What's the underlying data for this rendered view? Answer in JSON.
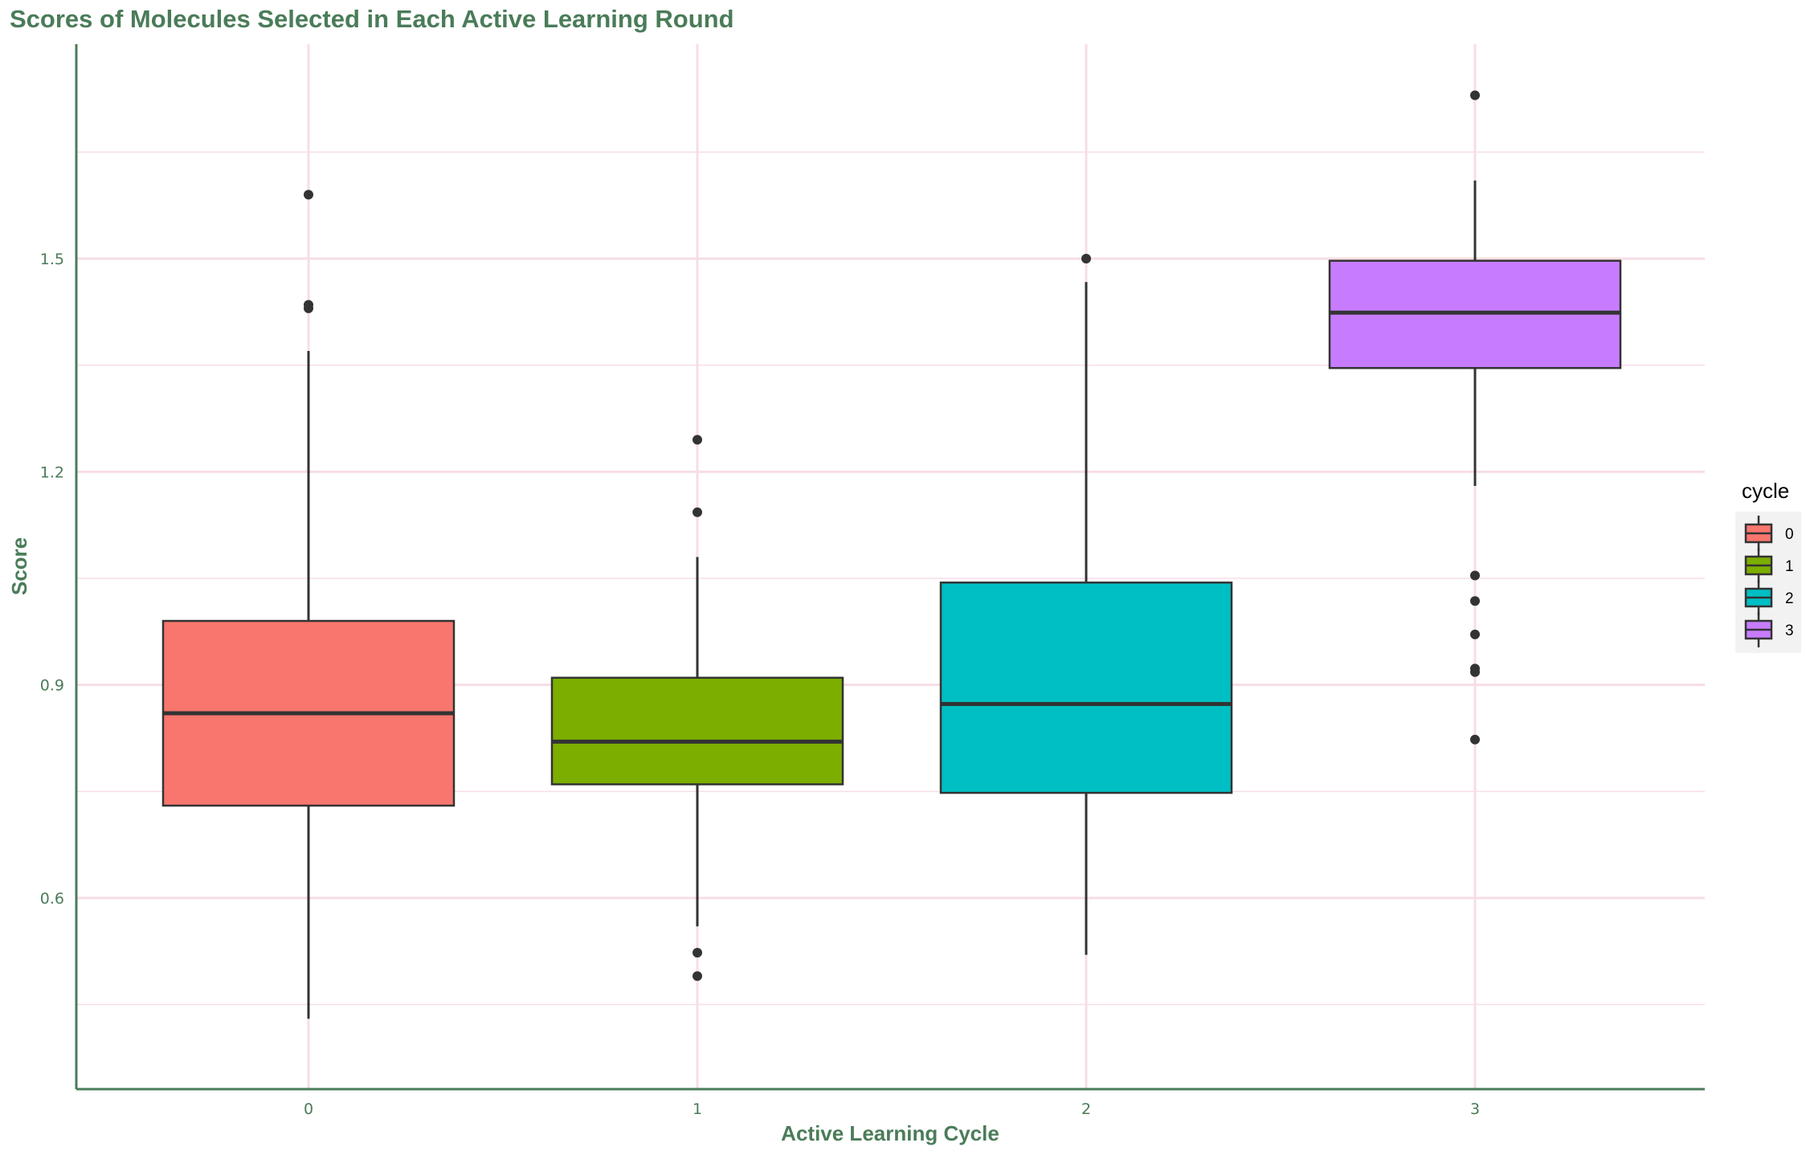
{
  "chart_data": {
    "type": "boxplot",
    "title": "Scores of Molecules Selected in Each Active Learning Round",
    "xlabel": "Active Learning Cycle",
    "ylabel": "Score",
    "ylim": [
      0.367,
      1.79
    ],
    "y_ticks": [
      0.6,
      0.9,
      1.2,
      1.5
    ],
    "y_minor_ticks": [
      0.45,
      0.75,
      1.05,
      1.35,
      1.65
    ],
    "categories": [
      "0",
      "1",
      "2",
      "3"
    ],
    "grid": true,
    "legend": {
      "title": "cycle",
      "position": "right",
      "entries": [
        "0",
        "1",
        "2",
        "3"
      ]
    },
    "colors": {
      "0": "#F8766D",
      "1": "#7CAE00",
      "2": "#00BFC4",
      "3": "#C77CFF",
      "axis": "#4a7c59",
      "grid": "#f7dde6",
      "box_line": "#333333"
    },
    "boxes": [
      {
        "cycle": "0",
        "whisker_low": 0.43,
        "q1": 0.73,
        "median": 0.86,
        "q3": 0.99,
        "whisker_high": 1.37,
        "outliers": [
          1.43,
          1.435,
          1.59
        ]
      },
      {
        "cycle": "1",
        "whisker_low": 0.56,
        "q1": 0.76,
        "median": 0.82,
        "q3": 0.91,
        "whisker_high": 1.08,
        "outliers": [
          0.49,
          0.523,
          1.143,
          1.245
        ]
      },
      {
        "cycle": "2",
        "whisker_low": 0.52,
        "q1": 0.748,
        "median": 0.873,
        "q3": 1.044,
        "whisker_high": 1.467,
        "outliers": [
          1.5
        ]
      },
      {
        "cycle": "3",
        "whisker_low": 1.18,
        "q1": 1.346,
        "median": 1.424,
        "q3": 1.497,
        "whisker_high": 1.61,
        "outliers": [
          0.823,
          0.918,
          0.923,
          0.971,
          1.018,
          1.054,
          1.73
        ]
      }
    ]
  }
}
